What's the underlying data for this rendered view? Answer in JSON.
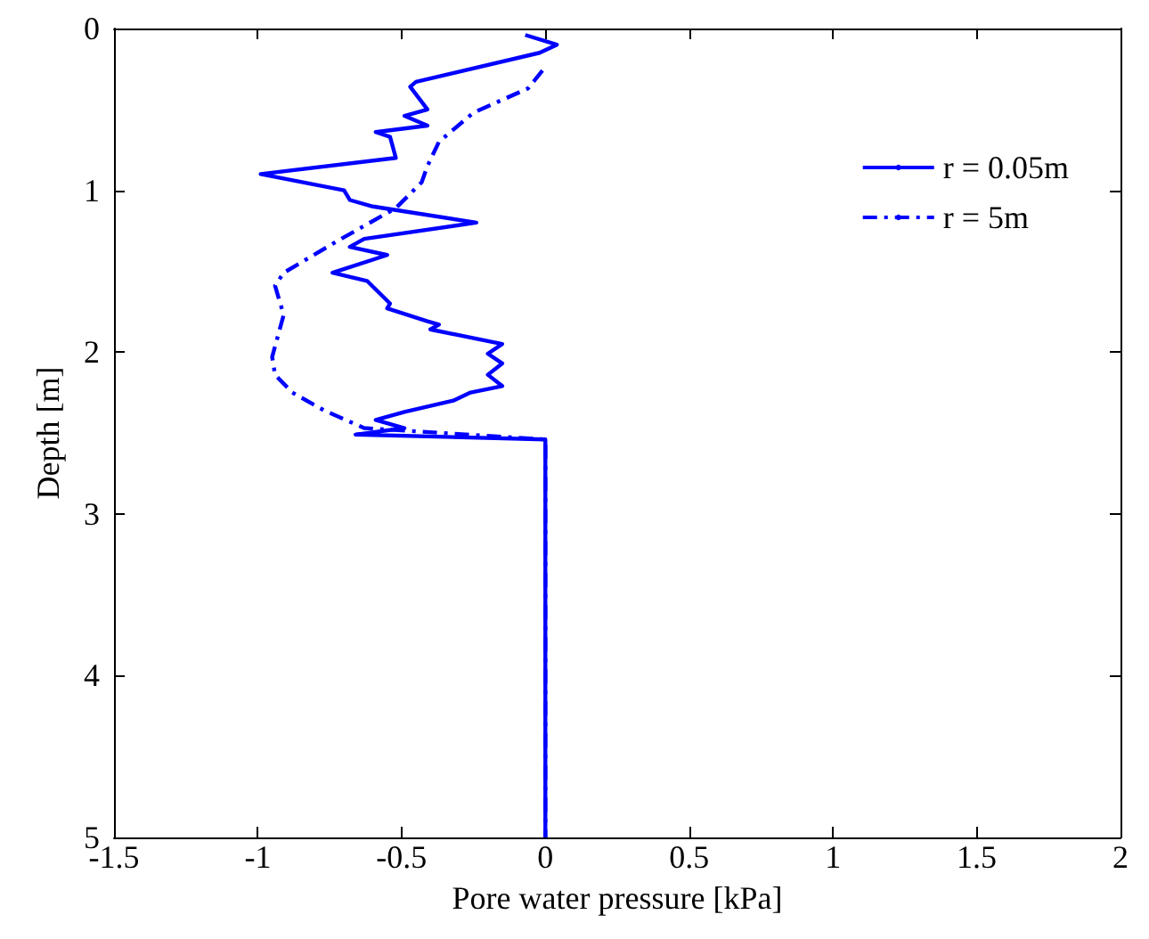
{
  "chart_data": {
    "type": "line",
    "xlabel": "Pore water pressure [kPa]",
    "ylabel": "Depth [m]",
    "xlim": [
      -1.5,
      2
    ],
    "xticks": [
      -1.5,
      -1,
      -0.5,
      0,
      0.5,
      1,
      1.5,
      2
    ],
    "ylim": [
      5,
      0
    ],
    "yticks": [
      0,
      1,
      2,
      3,
      4,
      5
    ],
    "grid": false,
    "legend": "top right",
    "marker": "none",
    "series": [
      {
        "name": "r = 0.05m",
        "color": "#0000ff",
        "line_style": "solid",
        "x": [
          -0.07,
          0.04,
          -0.02,
          -0.45,
          -0.47,
          -0.41,
          -0.49,
          -0.41,
          -0.59,
          -0.54,
          -0.52,
          -0.99,
          -0.7,
          -0.68,
          -0.6,
          -0.24,
          -0.63,
          -0.68,
          -0.55,
          -0.74,
          -0.62,
          -0.54,
          -0.55,
          -0.41,
          -0.37,
          -0.4,
          -0.15,
          -0.2,
          -0.15,
          -0.2,
          -0.15,
          -0.26,
          -0.32,
          -0.49,
          -0.59,
          -0.49,
          -0.66,
          0,
          0
        ],
        "values": [
          0.04,
          0.1,
          0.15,
          0.33,
          0.36,
          0.5,
          0.54,
          0.6,
          0.64,
          0.67,
          0.8,
          0.9,
          1.0,
          1.06,
          1.1,
          1.2,
          1.3,
          1.35,
          1.4,
          1.51,
          1.56,
          1.7,
          1.73,
          1.81,
          1.83,
          1.86,
          1.95,
          2.01,
          2.07,
          2.14,
          2.21,
          2.25,
          2.3,
          2.37,
          2.42,
          2.47,
          2.51,
          2.54,
          5
        ]
      },
      {
        "name": "r = 5m",
        "color": "#0000ff",
        "line_style": "dashdot",
        "x": [
          -0.01,
          -0.06,
          -0.25,
          -0.37,
          -0.41,
          -0.43,
          -0.52,
          -0.72,
          -0.91,
          -0.94,
          -0.91,
          -0.95,
          -0.94,
          -0.88,
          -0.77,
          -0.63,
          0,
          0
        ],
        "values": [
          0.26,
          0.37,
          0.52,
          0.7,
          0.85,
          0.95,
          1.11,
          1.31,
          1.51,
          1.59,
          1.77,
          2.03,
          2.14,
          2.25,
          2.36,
          2.47,
          2.54,
          5
        ]
      }
    ]
  }
}
